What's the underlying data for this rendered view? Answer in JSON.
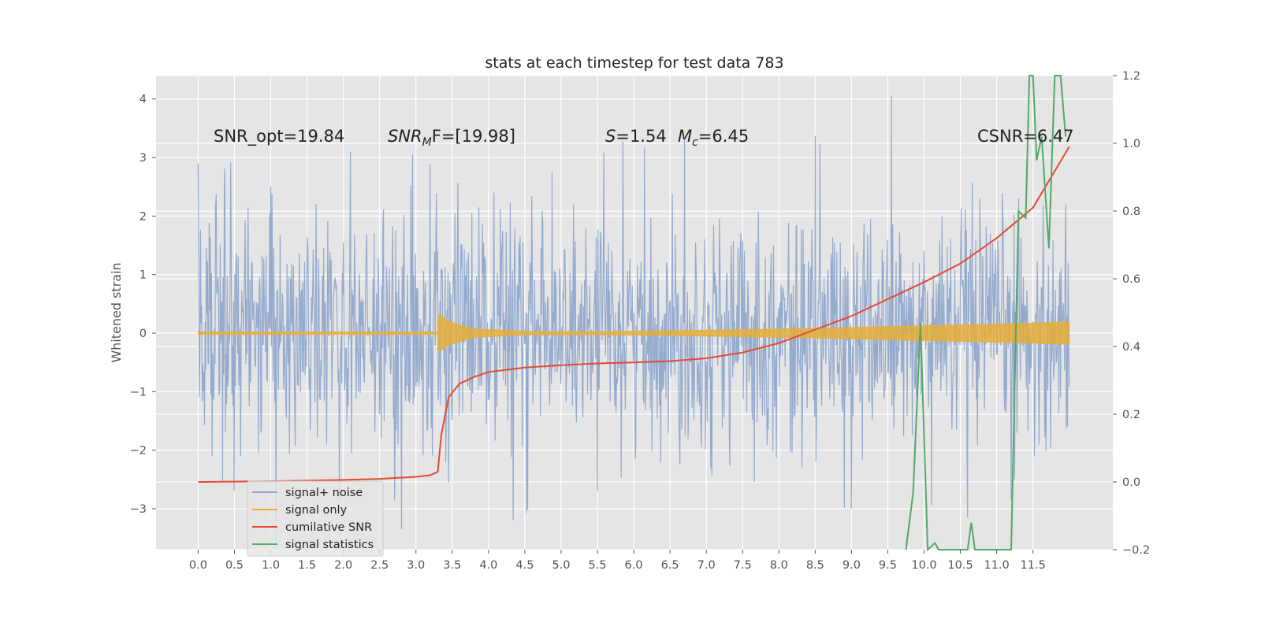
{
  "chart_data": {
    "type": "line",
    "title": "stats at each timestep for test data 783",
    "ylabel": "Whitened strain",
    "ylabel_right": "",
    "xlim": [
      -0.58,
      12.6
    ],
    "ylim": [
      -3.7,
      4.4
    ],
    "ylim_right": [
      -0.2,
      1.2
    ],
    "x_ticks": [
      "0.0",
      "0.5",
      "1.0",
      "1.5",
      "2.0",
      "2.5",
      "3.0",
      "3.5",
      "4.0",
      "4.5",
      "5.0",
      "5.5",
      "6.0",
      "6.5",
      "7.0",
      "7.5",
      "8.0",
      "8.5",
      "9.0",
      "9.5",
      "10.0",
      "10.5",
      "11.0",
      "11.5"
    ],
    "y_ticks": [
      "4",
      "3",
      "2",
      "1",
      "0",
      "−1",
      "−2",
      "−3"
    ],
    "y_ticks_right": [
      "1.2",
      "1.0",
      "0.8",
      "0.6",
      "0.4",
      "0.2",
      "0.0",
      "−0.2"
    ],
    "grid": true,
    "legend_position": "lower-left",
    "annotations": {
      "snr_opt": "SNR_opt=19.84",
      "snr_mf_base": "SNR",
      "snr_mf_sub": "M",
      "snr_mf_rest": "F=[19.98]",
      "s_sym": "S",
      "s_val": "=1.54",
      "mc_base": "M",
      "mc_sub": "c",
      "mc_val": "=6.45",
      "csnr": "CSNR=6.47"
    },
    "series": [
      {
        "name": "signal+ noise",
        "color": "#8fa6cc",
        "x_range": [
          0.0,
          12.0
        ],
        "typical_abs": 1.0,
        "peaks": [
          [
            0.0,
            2.9
          ],
          [
            0.45,
            2.92
          ],
          [
            1.0,
            2.5
          ],
          [
            2.1,
            3.1
          ],
          [
            2.95,
            3.05
          ],
          [
            5.85,
            3.28
          ],
          [
            6.7,
            3.3
          ],
          [
            8.5,
            3.37
          ],
          [
            9.55,
            4.05
          ],
          [
            10.25,
            2.0
          ],
          [
            11.3,
            2.3
          ],
          [
            11.95,
            2.2
          ]
        ],
        "troughs": [
          [
            0.5,
            -2.7
          ],
          [
            2.8,
            -3.35
          ],
          [
            3.45,
            -2.55
          ],
          [
            5.5,
            -2.7
          ],
          [
            9.0,
            -3.0
          ],
          [
            10.1,
            -2.95
          ],
          [
            10.6,
            -3.15
          ],
          [
            11.25,
            -2.5
          ]
        ]
      },
      {
        "name": "signal only",
        "color": "#e5ae38",
        "x": [
          0.0,
          3.3,
          3.32,
          3.45,
          3.8,
          4.5,
          5.5,
          6.5,
          7.5,
          8.5,
          9.5,
          10.5,
          11.5,
          12.0
        ],
        "envelope": [
          0.02,
          0.02,
          0.32,
          0.2,
          0.07,
          0.03,
          0.025,
          0.04,
          0.06,
          0.08,
          0.11,
          0.14,
          0.17,
          0.19
        ]
      },
      {
        "name": "cumilative SNR",
        "color": "#e24a33",
        "axis": "right",
        "x": [
          0.0,
          1.0,
          2.0,
          2.5,
          3.0,
          3.2,
          3.3,
          3.35,
          3.45,
          3.6,
          3.8,
          4.0,
          4.5,
          5.0,
          5.5,
          6.0,
          6.5,
          7.0,
          7.5,
          8.0,
          8.5,
          9.0,
          9.5,
          10.0,
          10.5,
          11.0,
          11.5,
          12.0
        ],
        "y": [
          0.0,
          0.002,
          0.006,
          0.009,
          0.015,
          0.02,
          0.03,
          0.14,
          0.25,
          0.29,
          0.31,
          0.325,
          0.338,
          0.345,
          0.35,
          0.353,
          0.357,
          0.365,
          0.382,
          0.41,
          0.45,
          0.49,
          0.54,
          0.59,
          0.645,
          0.72,
          0.81,
          0.99
        ]
      },
      {
        "name": "signal statistics",
        "color": "#348abd",
        "line_color": "#55a868",
        "axis": "right",
        "x": [
          9.75,
          9.85,
          9.95,
          10.05,
          10.15,
          10.2,
          10.3,
          10.45,
          10.6,
          10.65,
          10.7,
          11.2,
          11.3,
          11.4,
          11.45,
          11.5,
          11.55,
          11.62,
          11.72,
          11.8,
          11.88,
          11.95
        ],
        "y": [
          -0.2,
          -0.03,
          0.47,
          -0.2,
          -0.18,
          -0.2,
          -0.2,
          -0.2,
          -0.2,
          -0.12,
          -0.2,
          -0.2,
          0.8,
          0.78,
          1.22,
          1.22,
          0.95,
          1.02,
          0.69,
          1.22,
          1.22,
          1.02
        ]
      }
    ]
  }
}
